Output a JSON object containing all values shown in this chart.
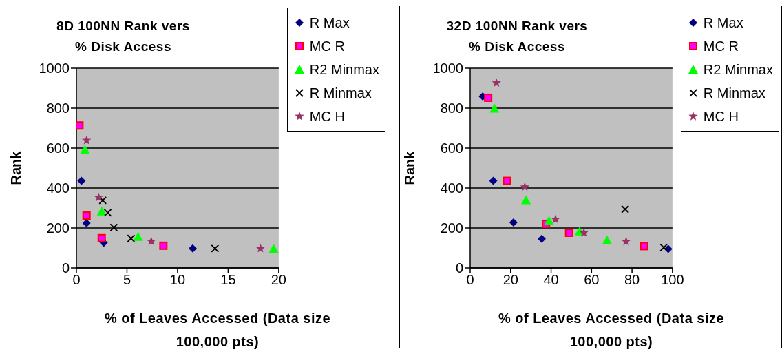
{
  "chart_data": [
    {
      "type": "scatter",
      "title": "8D 100NN  Rank vers\n% Disk Access",
      "xlabel": "% of Leaves Accessed (Data size 100,000 pts)",
      "ylabel": "Rank",
      "xlim": [
        0,
        20
      ],
      "xticks": [
        0,
        5,
        10,
        15,
        20
      ],
      "ylim": [
        0,
        1000
      ],
      "yticks": [
        0,
        200,
        400,
        600,
        800,
        1000
      ],
      "grid": "y",
      "legend": "top right",
      "series": [
        {
          "name": "R Max",
          "color": "#000080",
          "marker": "diamond",
          "x": [
            0.5,
            1.0,
            2.7,
            11.5
          ],
          "values": [
            436,
            224,
            126,
            97
          ]
        },
        {
          "name": "MC R",
          "color": "#ff00ff",
          "marker": "square",
          "x": [
            0.3,
            1.0,
            2.5,
            8.6
          ],
          "values": [
            713,
            262,
            149,
            111
          ]
        },
        {
          "name": "R2 Minmax",
          "color": "#00ff00",
          "marker": "triangle",
          "x": [
            0.85,
            2.5,
            6.1,
            19.5
          ],
          "values": [
            592,
            284,
            156,
            96
          ]
        },
        {
          "name": "R Minmax",
          "color": "#000000",
          "marker": "cross",
          "x": [
            2.6,
            3.1,
            3.7,
            5.4,
            13.7
          ],
          "values": [
            338,
            276,
            202,
            148,
            97
          ]
        },
        {
          "name": "MC H",
          "color": "#993366",
          "marker": "star",
          "x": [
            1.0,
            2.2,
            7.4,
            18.2
          ],
          "values": [
            638,
            353,
            133,
            97
          ]
        }
      ]
    },
    {
      "type": "scatter",
      "title": "32D 100NN  Rank vers\n% Disk Access",
      "xlabel": "% of Leaves Accessed (Data size 100,000 pts)",
      "ylabel": "Rank",
      "xlim": [
        0,
        100
      ],
      "xticks": [
        0,
        20,
        40,
        60,
        80,
        100
      ],
      "ylim": [
        0,
        1000
      ],
      "yticks": [
        0,
        200,
        400,
        600,
        800,
        1000
      ],
      "grid": "y",
      "legend": "top right",
      "series": [
        {
          "name": "R Max",
          "color": "#000080",
          "marker": "diamond",
          "x": [
            6.2,
            11.4,
            21.4,
            35.4,
            97.9
          ],
          "values": [
            859,
            436,
            228,
            146,
            95
          ]
        },
        {
          "name": "MC R",
          "color": "#ff00ff",
          "marker": "square",
          "x": [
            8.9,
            18.2,
            37.5,
            48.9,
            86.0
          ],
          "values": [
            852,
            436,
            221,
            176,
            109
          ]
        },
        {
          "name": "R2 Minmax",
          "color": "#00ff00",
          "marker": "triangle",
          "x": [
            12.0,
            27.6,
            39.0,
            54.1,
            67.7
          ],
          "values": [
            798,
            340,
            236,
            184,
            139
          ]
        },
        {
          "name": "R Minmax",
          "color": "#000000",
          "marker": "cross",
          "x": [
            76.6,
            95.7
          ],
          "values": [
            294,
            102
          ]
        },
        {
          "name": "MC H",
          "color": "#993366",
          "marker": "star",
          "x": [
            13.0,
            27.0,
            42.2,
            56.2,
            77.1
          ],
          "values": [
            926,
            405,
            243,
            176,
            132
          ]
        }
      ]
    }
  ]
}
